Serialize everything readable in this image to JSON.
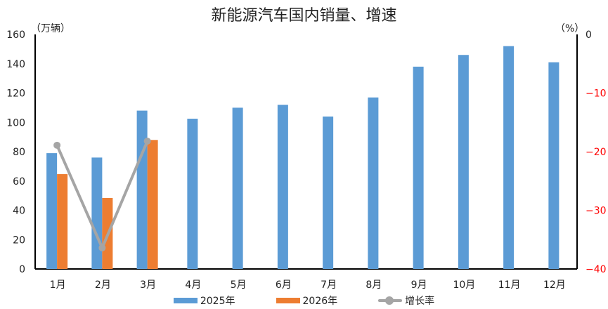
{
  "chart_data": {
    "type": "bar+line",
    "title": "新能源汽车国内销量、增速",
    "categories": [
      "1月",
      "2月",
      "3月",
      "4月",
      "5月",
      "6月",
      "7月",
      "8月",
      "9月",
      "10月",
      "11月",
      "12月"
    ],
    "series": [
      {
        "name": "2025年",
        "type": "bar",
        "axis": "left",
        "color": "#5b9bd5",
        "values": [
          79,
          76,
          108,
          102.5,
          110,
          112,
          104,
          117,
          138,
          146,
          152,
          141
        ]
      },
      {
        "name": "2026年",
        "type": "bar",
        "axis": "left",
        "color": "#ed7d31",
        "values": [
          64.7,
          48.4,
          88,
          null,
          null,
          null,
          null,
          null,
          null,
          null,
          null,
          null
        ]
      },
      {
        "name": "增长率",
        "type": "line",
        "axis": "right",
        "color": "#a5a5a5",
        "values": [
          -18.9,
          -36.4,
          -18.2,
          null,
          null,
          null,
          null,
          null,
          null,
          null,
          null,
          null
        ]
      }
    ],
    "ylabel_left": "（万辆）",
    "ylabel_right": "（%）",
    "ylim_left": [
      0,
      160
    ],
    "ylim_right": [
      -40,
      0
    ],
    "yticks_left": [
      0,
      20,
      40,
      60,
      80,
      100,
      120,
      140,
      160
    ],
    "yticks_right": [
      0,
      -10,
      -20,
      -30,
      -40
    ],
    "right_tick_colors": {
      "0": "#222222",
      "negative": "#ff0000"
    },
    "grid": false,
    "legend_position": "bottom"
  },
  "labels": {
    "title": "新能源汽车国内销量、增速",
    "unit_left": "（万辆）",
    "unit_right": "（%）",
    "legend": [
      "2025年",
      "2026年",
      "增长率"
    ]
  },
  "colors": {
    "bar2025": "#5b9bd5",
    "bar2026": "#ed7d31",
    "line": "#a5a5a5",
    "negTick": "#ff0000"
  }
}
